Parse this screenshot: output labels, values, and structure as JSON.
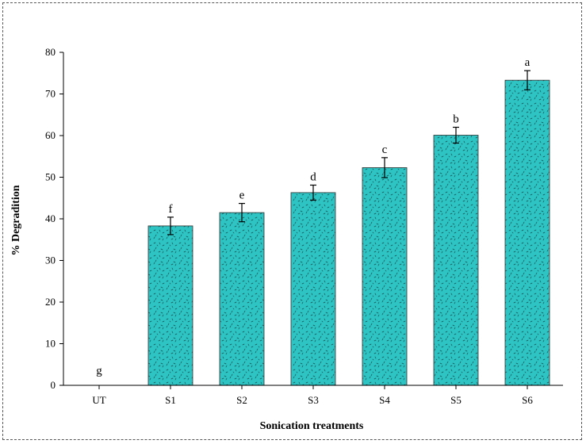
{
  "chart_data": {
    "type": "bar",
    "xlabel": "Sonication treatments",
    "ylabel": "% Degradition",
    "categories": [
      "UT",
      "S1",
      "S2",
      "S3",
      "S4",
      "S5",
      "S6"
    ],
    "values": [
      0,
      38.3,
      41.5,
      46.3,
      52.3,
      60.1,
      73.3
    ],
    "errors": [
      0,
      2.1,
      2.2,
      1.8,
      2.4,
      1.9,
      2.3
    ],
    "significance_letters": [
      "g",
      "f",
      "e",
      "d",
      "c",
      "b",
      "a"
    ],
    "ylim": [
      0,
      80
    ],
    "yticks": [
      0,
      10,
      20,
      30,
      40,
      50,
      60,
      70,
      80
    ],
    "grid": false,
    "bar_color": "#2ec4c4",
    "bar_pattern_color": "#1a4f4f"
  }
}
